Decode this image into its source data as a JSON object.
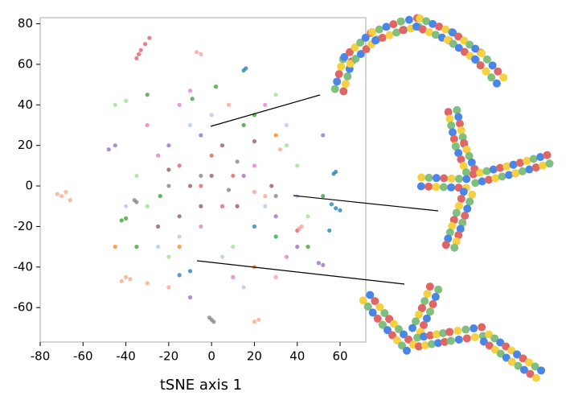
{
  "chart_data": {
    "type": "scatter",
    "x_label": "tSNE axis 1",
    "xlim": [
      -80,
      72
    ],
    "ylim": [
      -77,
      83
    ],
    "xticks": [
      -80,
      -60,
      -40,
      -20,
      0,
      20,
      40,
      60
    ],
    "yticks": [
      -60,
      -40,
      -20,
      0,
      20,
      40,
      60,
      80
    ],
    "grid": false,
    "series": [
      {
        "color": "#f4a582",
        "x": [
          -70,
          -68,
          -72,
          -66,
          -40,
          -42,
          -38,
          -30,
          20,
          22,
          32,
          25
        ],
        "y": [
          -5,
          -3,
          -4,
          -7,
          -45,
          -47,
          -46,
          -48,
          -67,
          -66,
          18,
          -5
        ]
      },
      {
        "color": "#e05a5a",
        "x": [
          -35,
          -33,
          -31,
          -29,
          -34,
          10,
          -5,
          5,
          40,
          -15,
          0
        ],
        "y": [
          63,
          67,
          70,
          73,
          65,
          5,
          0,
          -10,
          -22,
          10,
          15
        ]
      },
      {
        "color": "#7f7f7f",
        "x": [
          -36,
          -35,
          0,
          1,
          -1,
          -5,
          8,
          12,
          -20,
          30
        ],
        "y": [
          -7,
          -8,
          -66,
          -67,
          -65,
          5,
          -2,
          12,
          0,
          -5
        ]
      },
      {
        "color": "#1f77b4",
        "x": [
          15,
          16,
          58,
          60,
          56,
          57,
          58,
          20,
          -10,
          -15,
          55
        ],
        "y": [
          57,
          58,
          -11,
          -12,
          -9,
          6,
          7,
          -20,
          -42,
          -44,
          -22
        ]
      },
      {
        "color": "#2ca02c",
        "x": [
          2,
          -9,
          -40,
          -42,
          -24,
          -35,
          45,
          52,
          20,
          15,
          -30,
          30
        ],
        "y": [
          49,
          43,
          -16,
          -17,
          -5,
          -30,
          -30,
          -5,
          35,
          30,
          45,
          -25
        ]
      },
      {
        "color": "#9467bd",
        "x": [
          -45,
          -48,
          -10,
          50,
          52,
          52,
          -20,
          15,
          30,
          40,
          -5
        ],
        "y": [
          20,
          18,
          -55,
          -38,
          -39,
          25,
          20,
          5,
          -15,
          -30,
          25
        ]
      },
      {
        "color": "#e377c2",
        "x": [
          -10,
          -15,
          -25,
          -5,
          10,
          20,
          -30,
          25,
          35
        ],
        "y": [
          47,
          40,
          15,
          -20,
          -45,
          10,
          30,
          40,
          -35
        ]
      },
      {
        "color": "#8c564b",
        "x": [
          -20,
          -10,
          0,
          5,
          -15,
          12,
          -25,
          20,
          -5,
          28
        ],
        "y": [
          8,
          0,
          5,
          20,
          -15,
          -10,
          -20,
          22,
          -10,
          0
        ]
      },
      {
        "color": "#98df8a",
        "x": [
          -45,
          -40,
          -30,
          -20,
          35,
          40,
          45,
          -35,
          10,
          30
        ],
        "y": [
          40,
          42,
          -10,
          -35,
          20,
          10,
          -15,
          5,
          -30,
          45
        ]
      },
      {
        "color": "#aec7e8",
        "x": [
          -10,
          5,
          25,
          -25,
          15,
          40,
          -40,
          0,
          35,
          -15
        ],
        "y": [
          30,
          -35,
          -10,
          -30,
          -50,
          -5,
          -10,
          35,
          30,
          -25
        ]
      },
      {
        "color": "#ff9896",
        "x": [
          -5,
          -7,
          42,
          41,
          30,
          -20,
          8,
          20
        ],
        "y": [
          65,
          66,
          -20,
          -21,
          -45,
          -50,
          40,
          -3
        ]
      },
      {
        "color": "#ff7f0e",
        "x": [
          -45,
          -15,
          20,
          30
        ],
        "y": [
          -30,
          -30,
          -40,
          25
        ]
      }
    ]
  }
}
